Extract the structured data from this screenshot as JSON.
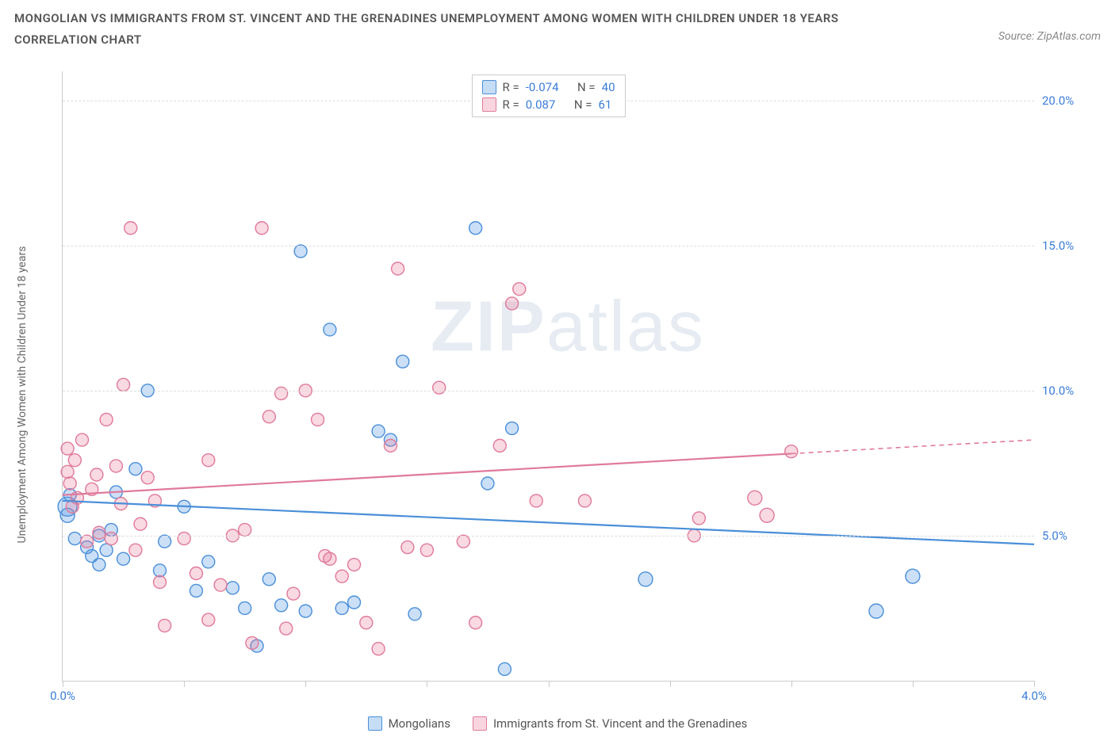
{
  "title": "MONGOLIAN VS IMMIGRANTS FROM ST. VINCENT AND THE GRENADINES UNEMPLOYMENT AMONG WOMEN WITH CHILDREN UNDER 18 YEARS CORRELATION CHART",
  "source": "Source: ZipAtlas.com",
  "ylabel": "Unemployment Among Women with Children Under 18 years",
  "watermark_a": "ZIP",
  "watermark_b": "atlas",
  "chart": {
    "type": "scatter",
    "xlim": [
      0.0,
      4.0
    ],
    "ylim": [
      0.0,
      21.0
    ],
    "xticks": [
      0.0,
      0.5,
      1.0,
      1.5,
      2.0,
      2.5,
      3.0,
      3.5,
      4.0
    ],
    "xtick_labels": {
      "0": "0.0%",
      "8": "4.0%"
    },
    "yticks": [
      5.0,
      10.0,
      15.0,
      20.0
    ],
    "ytick_labels": [
      "5.0%",
      "10.0%",
      "15.0%",
      "20.0%"
    ],
    "background_color": "#ffffff",
    "grid_color": "#dddddd",
    "colors": {
      "blue_fill": "rgba(93,157,230,0.32)",
      "blue_stroke": "#4a8fd9",
      "pink_fill": "rgba(235,120,150,0.28)",
      "pink_stroke": "#e07a9a"
    },
    "marker_radius": 8,
    "series": [
      {
        "name": "Mongolians",
        "color": "blue",
        "R": "-0.074",
        "N": "40",
        "trend": {
          "x1": 0.0,
          "y1": 6.2,
          "x2": 4.0,
          "y2": 4.7,
          "solid_until_x": 4.0
        },
        "points": [
          [
            0.02,
            6.0,
            12
          ],
          [
            0.02,
            5.7,
            9
          ],
          [
            0.03,
            6.4,
            8
          ],
          [
            0.05,
            4.9,
            8
          ],
          [
            0.1,
            4.6,
            8
          ],
          [
            0.12,
            4.3,
            8
          ],
          [
            0.15,
            4.0,
            8
          ],
          [
            0.18,
            4.5,
            8
          ],
          [
            0.15,
            5.0,
            8
          ],
          [
            0.2,
            5.2,
            8
          ],
          [
            0.22,
            6.5,
            8
          ],
          [
            0.25,
            4.2,
            8
          ],
          [
            0.3,
            7.3,
            8
          ],
          [
            0.35,
            10.0,
            8
          ],
          [
            0.4,
            3.8,
            8
          ],
          [
            0.42,
            4.8,
            8
          ],
          [
            0.5,
            6.0,
            8
          ],
          [
            0.55,
            3.1,
            8
          ],
          [
            0.6,
            4.1,
            8
          ],
          [
            0.7,
            3.2,
            8
          ],
          [
            0.75,
            2.5,
            8
          ],
          [
            0.8,
            1.2,
            8
          ],
          [
            0.85,
            3.5,
            8
          ],
          [
            0.9,
            2.6,
            8
          ],
          [
            0.98,
            14.8,
            8
          ],
          [
            1.0,
            2.4,
            8
          ],
          [
            1.1,
            12.1,
            8
          ],
          [
            1.15,
            2.5,
            8
          ],
          [
            1.2,
            2.7,
            8
          ],
          [
            1.3,
            8.6,
            8
          ],
          [
            1.35,
            8.3,
            8
          ],
          [
            1.4,
            11.0,
            8
          ],
          [
            1.45,
            2.3,
            8
          ],
          [
            1.7,
            15.6,
            8
          ],
          [
            1.75,
            6.8,
            8
          ],
          [
            1.82,
            0.4,
            8
          ],
          [
            1.85,
            8.7,
            8
          ],
          [
            2.4,
            3.5,
            9
          ],
          [
            3.35,
            2.4,
            9
          ],
          [
            3.5,
            3.6,
            9
          ]
        ]
      },
      {
        "name": "Immigrants from St. Vincent and the Grenadines",
        "color": "pink",
        "R": "0.087",
        "N": "61",
        "trend": {
          "x1": 0.0,
          "y1": 6.4,
          "x2": 4.0,
          "y2": 8.3,
          "solid_until_x": 3.0
        },
        "points": [
          [
            0.02,
            8.0,
            8
          ],
          [
            0.02,
            7.2,
            8
          ],
          [
            0.03,
            6.8,
            8
          ],
          [
            0.04,
            6.0,
            8
          ],
          [
            0.05,
            7.6,
            8
          ],
          [
            0.06,
            6.3,
            8
          ],
          [
            0.08,
            8.3,
            8
          ],
          [
            0.1,
            4.8,
            8
          ],
          [
            0.12,
            6.6,
            8
          ],
          [
            0.14,
            7.1,
            8
          ],
          [
            0.15,
            5.1,
            8
          ],
          [
            0.18,
            9.0,
            8
          ],
          [
            0.2,
            4.9,
            8
          ],
          [
            0.22,
            7.4,
            8
          ],
          [
            0.24,
            6.1,
            8
          ],
          [
            0.25,
            10.2,
            8
          ],
          [
            0.28,
            15.6,
            8
          ],
          [
            0.3,
            4.5,
            8
          ],
          [
            0.32,
            5.4,
            8
          ],
          [
            0.35,
            7.0,
            8
          ],
          [
            0.38,
            6.2,
            8
          ],
          [
            0.4,
            3.4,
            8
          ],
          [
            0.42,
            1.9,
            8
          ],
          [
            0.5,
            4.9,
            8
          ],
          [
            0.55,
            3.7,
            8
          ],
          [
            0.6,
            2.1,
            8
          ],
          [
            0.6,
            7.6,
            8
          ],
          [
            0.65,
            3.3,
            8
          ],
          [
            0.7,
            5.0,
            8
          ],
          [
            0.75,
            5.2,
            8
          ],
          [
            0.78,
            1.3,
            8
          ],
          [
            0.82,
            15.6,
            8
          ],
          [
            0.85,
            9.1,
            8
          ],
          [
            0.9,
            9.9,
            8
          ],
          [
            0.92,
            1.8,
            8
          ],
          [
            0.95,
            3.0,
            8
          ],
          [
            1.0,
            10.0,
            8
          ],
          [
            1.05,
            9.0,
            8
          ],
          [
            1.08,
            4.3,
            8
          ],
          [
            1.1,
            4.2,
            8
          ],
          [
            1.15,
            3.6,
            8
          ],
          [
            1.2,
            4.0,
            8
          ],
          [
            1.25,
            2.0,
            8
          ],
          [
            1.3,
            1.1,
            8
          ],
          [
            1.35,
            8.1,
            8
          ],
          [
            1.38,
            14.2,
            8
          ],
          [
            1.42,
            4.6,
            8
          ],
          [
            1.5,
            4.5,
            8
          ],
          [
            1.55,
            10.1,
            8
          ],
          [
            1.65,
            4.8,
            8
          ],
          [
            1.7,
            2.0,
            8
          ],
          [
            1.8,
            8.1,
            8
          ],
          [
            1.85,
            13.0,
            8
          ],
          [
            1.88,
            13.5,
            8
          ],
          [
            1.95,
            6.2,
            8
          ],
          [
            2.15,
            6.2,
            8
          ],
          [
            2.6,
            5.0,
            8
          ],
          [
            2.62,
            5.6,
            8
          ],
          [
            2.85,
            6.3,
            9
          ],
          [
            2.9,
            5.7,
            9
          ],
          [
            3.0,
            7.9,
            8
          ]
        ]
      }
    ]
  },
  "legend_top_labels": {
    "R": "R =",
    "N": "N ="
  },
  "bottom_legend": [
    {
      "label": "Mongolians",
      "color": "blue"
    },
    {
      "label": "Immigrants from St. Vincent and the Grenadines",
      "color": "pink"
    }
  ]
}
